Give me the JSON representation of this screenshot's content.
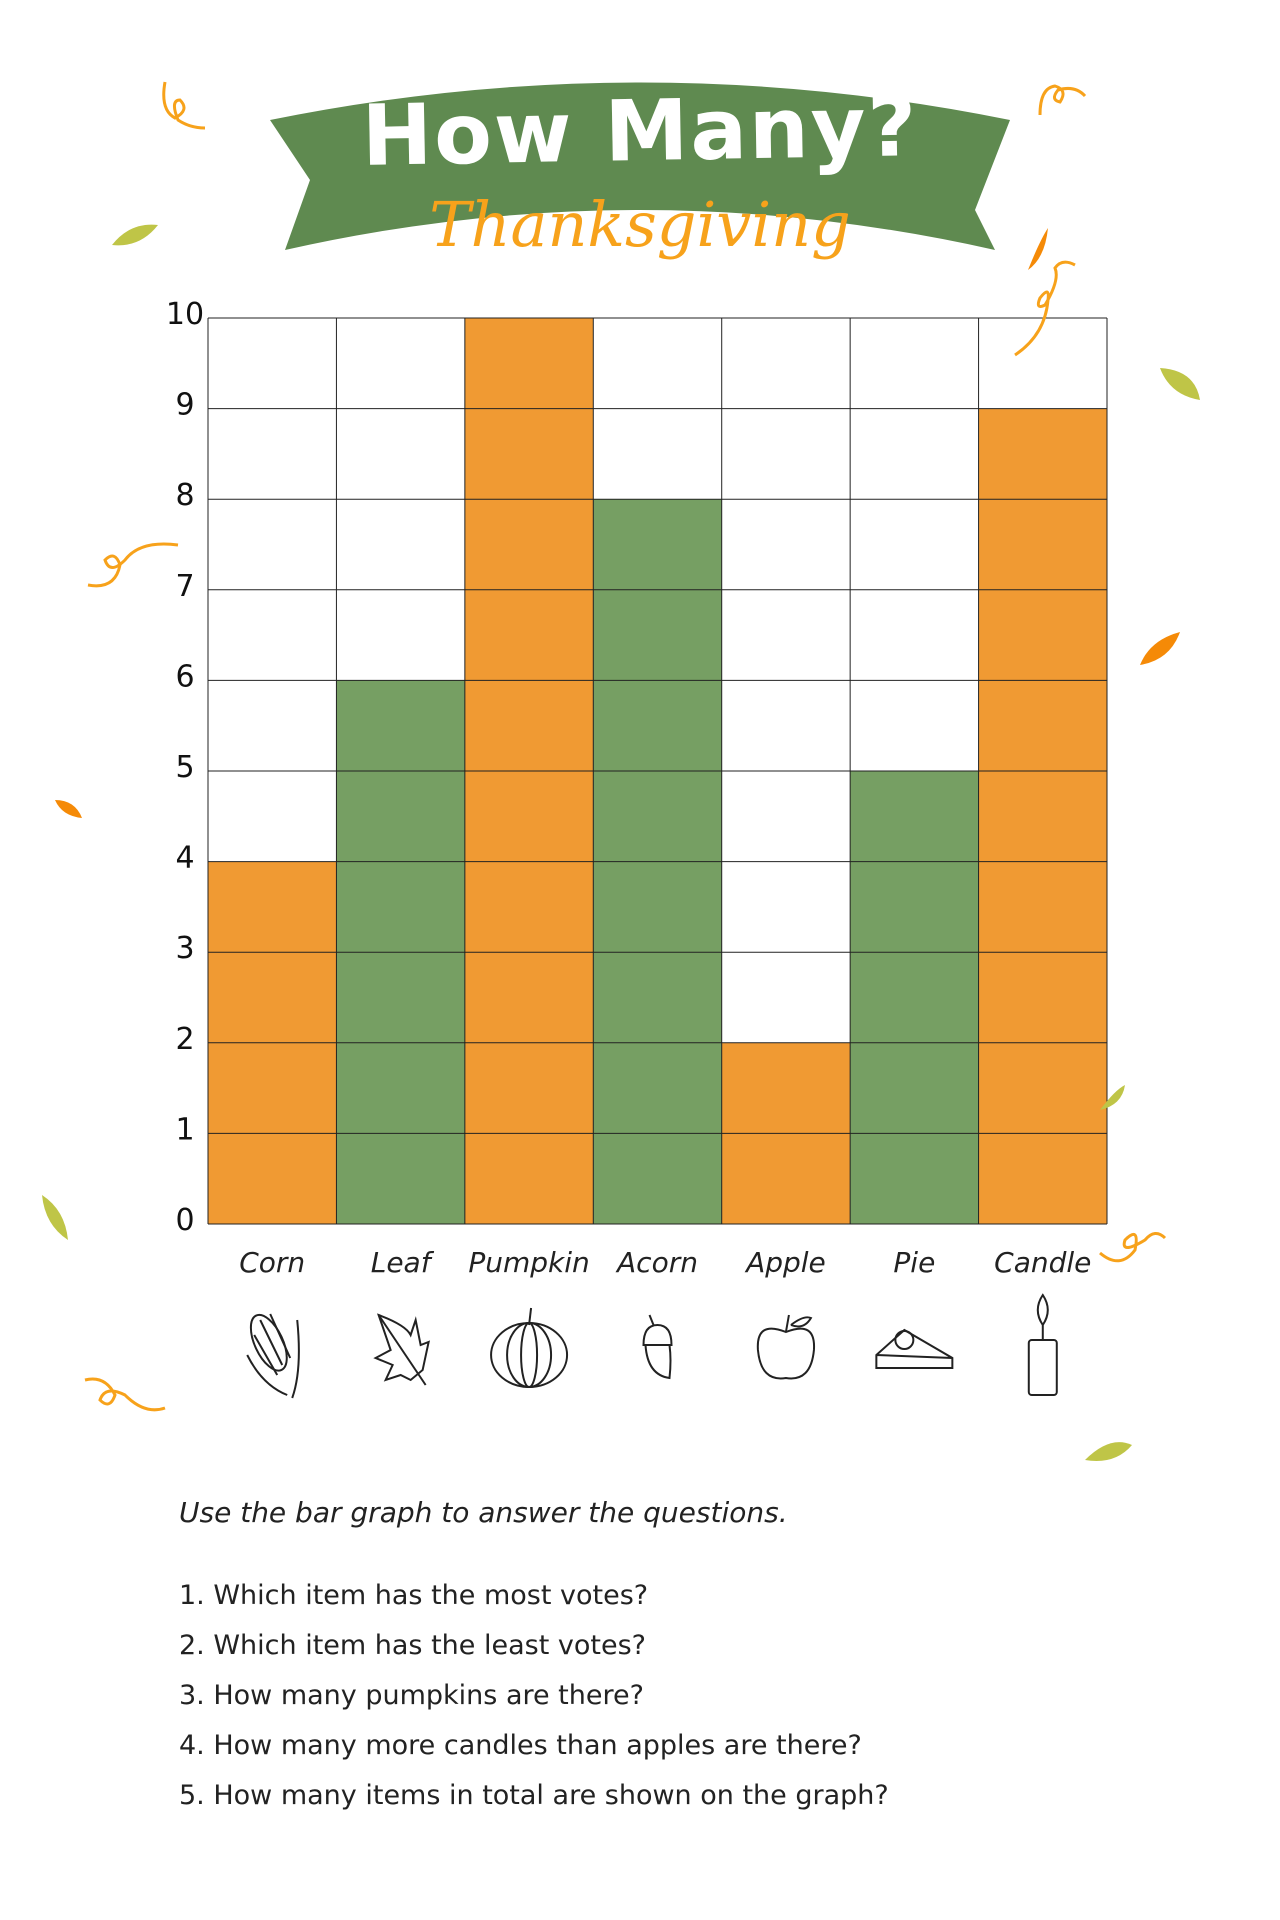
{
  "header": {
    "title": "How Many?",
    "subtitle": "Thanksgiving"
  },
  "colors": {
    "orange": "#F09A33",
    "green": "#769F63",
    "banner": "#5F8A50",
    "script": "#F7A21B",
    "leaf_lime": "#BFC547",
    "leaf_orange": "#F58A07"
  },
  "chart_data": {
    "type": "bar",
    "title": "",
    "xlabel": "",
    "ylabel": "",
    "categories": [
      "Corn",
      "Leaf",
      "Pumpkin",
      "Acorn",
      "Apple",
      "Pie",
      "Candle"
    ],
    "values": [
      4,
      6,
      10,
      8,
      2,
      5,
      9
    ],
    "bar_colors": [
      "orange",
      "green",
      "orange",
      "green",
      "orange",
      "green",
      "orange"
    ],
    "icons": [
      "corn-icon",
      "leaf-icon",
      "pumpkin-icon",
      "acorn-icon",
      "apple-icon",
      "pie-icon",
      "candle-icon"
    ],
    "ylim": [
      0,
      10
    ],
    "yticks": [
      "0",
      "1",
      "2",
      "3",
      "4",
      "5",
      "6",
      "7",
      "8",
      "9",
      "10"
    ],
    "grid": true,
    "legend": "none"
  },
  "worksheet": {
    "instructions": "Use the bar graph to answer the questions.",
    "questions": [
      "1. Which item has the most votes?",
      "2. Which item has the least votes?",
      "3. How many pumpkins are there?",
      "4. How many more candles than apples are there?",
      "5. How many items in total are shown on the graph?"
    ]
  }
}
